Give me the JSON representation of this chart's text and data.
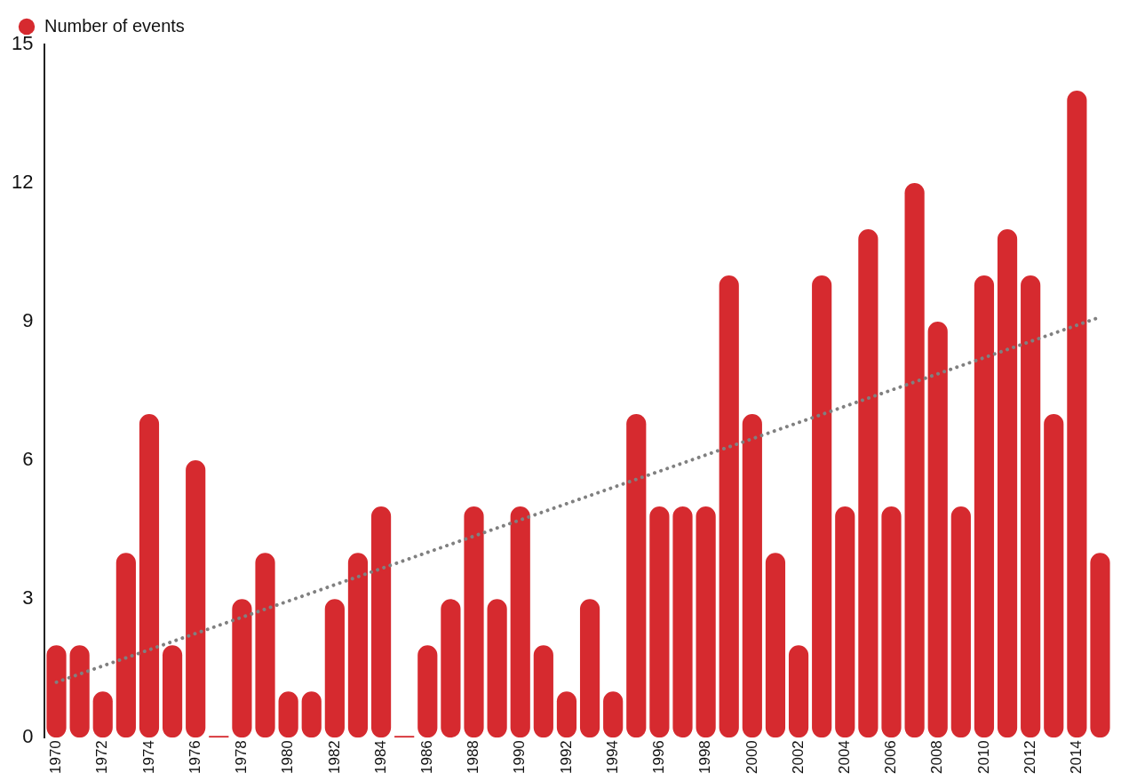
{
  "chart_data": {
    "type": "bar",
    "categories": [
      "1970",
      null,
      "1972",
      null,
      "1974",
      null,
      "1976",
      null,
      "1978",
      null,
      "1980",
      null,
      "1982",
      null,
      "1984",
      null,
      "1986",
      null,
      "1988",
      null,
      "1990",
      null,
      "1992",
      null,
      "1994",
      null,
      "1996",
      null,
      "1998",
      null,
      "2000",
      null,
      "2002",
      null,
      "2004",
      null,
      "2006",
      null,
      "2008",
      null,
      "2010",
      null,
      "2012",
      null,
      "2014",
      null
    ],
    "series": [
      {
        "name": "Number of events",
        "color": "#d62a2f",
        "values": [
          2,
          2,
          1,
          4,
          7,
          2,
          6,
          0,
          3,
          4,
          1,
          1,
          3,
          4,
          5,
          0,
          2,
          3,
          5,
          3,
          5,
          2,
          1,
          3,
          1,
          7,
          5,
          5,
          5,
          10,
          7,
          4,
          2,
          10,
          5,
          11,
          5,
          12,
          9,
          5,
          10,
          11,
          10,
          7,
          14,
          4
        ]
      },
      {
        "type": "line",
        "color": "#808080",
        "line_style": "dotted",
        "marker": "none",
        "values": [
          1.2,
          null,
          null,
          null,
          null,
          null,
          null,
          null,
          null,
          null,
          null,
          null,
          null,
          null,
          null,
          null,
          null,
          null,
          null,
          null,
          null,
          null,
          null,
          null,
          null,
          null,
          null,
          null,
          null,
          null,
          null,
          null,
          null,
          null,
          null,
          null,
          null,
          null,
          null,
          null,
          null,
          null,
          null,
          null,
          null,
          9.1
        ]
      }
    ],
    "ylim": [
      0,
      15
    ],
    "yticks": [
      0,
      3,
      6,
      9,
      12,
      15
    ],
    "grid": false,
    "legend": "top left"
  }
}
